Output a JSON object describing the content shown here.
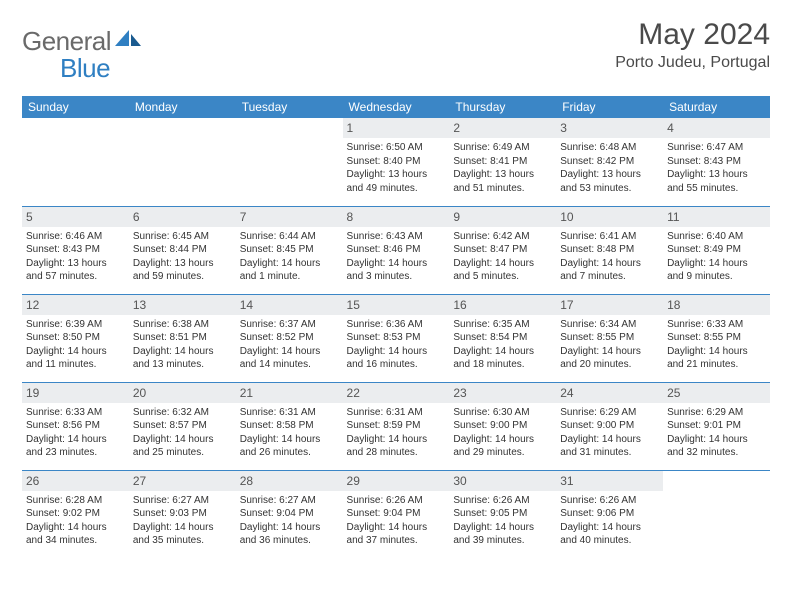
{
  "logo": {
    "text1": "General",
    "text2": "Blue"
  },
  "header": {
    "month": "May 2024",
    "location": "Porto Judeu, Portugal"
  },
  "colors": {
    "header_bg": "#3b86c6",
    "header_fg": "#ffffff",
    "daynum_bg": "#ebedef",
    "rule": "#3b86c6",
    "logo_gray": "#6a6a6a",
    "logo_blue": "#2f7fc2"
  },
  "typography": {
    "month_fontsize": 30,
    "location_fontsize": 16,
    "dayhdr_fontsize": 12,
    "cell_fontsize": 10
  },
  "weekdays": [
    "Sunday",
    "Monday",
    "Tuesday",
    "Wednesday",
    "Thursday",
    "Friday",
    "Saturday"
  ],
  "weeks": [
    [
      {
        "empty": true
      },
      {
        "empty": true
      },
      {
        "empty": true
      },
      {
        "n": "1",
        "sr": "Sunrise: 6:50 AM",
        "ss": "Sunset: 8:40 PM",
        "d1": "Daylight: 13 hours",
        "d2": "and 49 minutes."
      },
      {
        "n": "2",
        "sr": "Sunrise: 6:49 AM",
        "ss": "Sunset: 8:41 PM",
        "d1": "Daylight: 13 hours",
        "d2": "and 51 minutes."
      },
      {
        "n": "3",
        "sr": "Sunrise: 6:48 AM",
        "ss": "Sunset: 8:42 PM",
        "d1": "Daylight: 13 hours",
        "d2": "and 53 minutes."
      },
      {
        "n": "4",
        "sr": "Sunrise: 6:47 AM",
        "ss": "Sunset: 8:43 PM",
        "d1": "Daylight: 13 hours",
        "d2": "and 55 minutes."
      }
    ],
    [
      {
        "n": "5",
        "sr": "Sunrise: 6:46 AM",
        "ss": "Sunset: 8:43 PM",
        "d1": "Daylight: 13 hours",
        "d2": "and 57 minutes."
      },
      {
        "n": "6",
        "sr": "Sunrise: 6:45 AM",
        "ss": "Sunset: 8:44 PM",
        "d1": "Daylight: 13 hours",
        "d2": "and 59 minutes."
      },
      {
        "n": "7",
        "sr": "Sunrise: 6:44 AM",
        "ss": "Sunset: 8:45 PM",
        "d1": "Daylight: 14 hours",
        "d2": "and 1 minute."
      },
      {
        "n": "8",
        "sr": "Sunrise: 6:43 AM",
        "ss": "Sunset: 8:46 PM",
        "d1": "Daylight: 14 hours",
        "d2": "and 3 minutes."
      },
      {
        "n": "9",
        "sr": "Sunrise: 6:42 AM",
        "ss": "Sunset: 8:47 PM",
        "d1": "Daylight: 14 hours",
        "d2": "and 5 minutes."
      },
      {
        "n": "10",
        "sr": "Sunrise: 6:41 AM",
        "ss": "Sunset: 8:48 PM",
        "d1": "Daylight: 14 hours",
        "d2": "and 7 minutes."
      },
      {
        "n": "11",
        "sr": "Sunrise: 6:40 AM",
        "ss": "Sunset: 8:49 PM",
        "d1": "Daylight: 14 hours",
        "d2": "and 9 minutes."
      }
    ],
    [
      {
        "n": "12",
        "sr": "Sunrise: 6:39 AM",
        "ss": "Sunset: 8:50 PM",
        "d1": "Daylight: 14 hours",
        "d2": "and 11 minutes."
      },
      {
        "n": "13",
        "sr": "Sunrise: 6:38 AM",
        "ss": "Sunset: 8:51 PM",
        "d1": "Daylight: 14 hours",
        "d2": "and 13 minutes."
      },
      {
        "n": "14",
        "sr": "Sunrise: 6:37 AM",
        "ss": "Sunset: 8:52 PM",
        "d1": "Daylight: 14 hours",
        "d2": "and 14 minutes."
      },
      {
        "n": "15",
        "sr": "Sunrise: 6:36 AM",
        "ss": "Sunset: 8:53 PM",
        "d1": "Daylight: 14 hours",
        "d2": "and 16 minutes."
      },
      {
        "n": "16",
        "sr": "Sunrise: 6:35 AM",
        "ss": "Sunset: 8:54 PM",
        "d1": "Daylight: 14 hours",
        "d2": "and 18 minutes."
      },
      {
        "n": "17",
        "sr": "Sunrise: 6:34 AM",
        "ss": "Sunset: 8:55 PM",
        "d1": "Daylight: 14 hours",
        "d2": "and 20 minutes."
      },
      {
        "n": "18",
        "sr": "Sunrise: 6:33 AM",
        "ss": "Sunset: 8:55 PM",
        "d1": "Daylight: 14 hours",
        "d2": "and 21 minutes."
      }
    ],
    [
      {
        "n": "19",
        "sr": "Sunrise: 6:33 AM",
        "ss": "Sunset: 8:56 PM",
        "d1": "Daylight: 14 hours",
        "d2": "and 23 minutes."
      },
      {
        "n": "20",
        "sr": "Sunrise: 6:32 AM",
        "ss": "Sunset: 8:57 PM",
        "d1": "Daylight: 14 hours",
        "d2": "and 25 minutes."
      },
      {
        "n": "21",
        "sr": "Sunrise: 6:31 AM",
        "ss": "Sunset: 8:58 PM",
        "d1": "Daylight: 14 hours",
        "d2": "and 26 minutes."
      },
      {
        "n": "22",
        "sr": "Sunrise: 6:31 AM",
        "ss": "Sunset: 8:59 PM",
        "d1": "Daylight: 14 hours",
        "d2": "and 28 minutes."
      },
      {
        "n": "23",
        "sr": "Sunrise: 6:30 AM",
        "ss": "Sunset: 9:00 PM",
        "d1": "Daylight: 14 hours",
        "d2": "and 29 minutes."
      },
      {
        "n": "24",
        "sr": "Sunrise: 6:29 AM",
        "ss": "Sunset: 9:00 PM",
        "d1": "Daylight: 14 hours",
        "d2": "and 31 minutes."
      },
      {
        "n": "25",
        "sr": "Sunrise: 6:29 AM",
        "ss": "Sunset: 9:01 PM",
        "d1": "Daylight: 14 hours",
        "d2": "and 32 minutes."
      }
    ],
    [
      {
        "n": "26",
        "sr": "Sunrise: 6:28 AM",
        "ss": "Sunset: 9:02 PM",
        "d1": "Daylight: 14 hours",
        "d2": "and 34 minutes."
      },
      {
        "n": "27",
        "sr": "Sunrise: 6:27 AM",
        "ss": "Sunset: 9:03 PM",
        "d1": "Daylight: 14 hours",
        "d2": "and 35 minutes."
      },
      {
        "n": "28",
        "sr": "Sunrise: 6:27 AM",
        "ss": "Sunset: 9:04 PM",
        "d1": "Daylight: 14 hours",
        "d2": "and 36 minutes."
      },
      {
        "n": "29",
        "sr": "Sunrise: 6:26 AM",
        "ss": "Sunset: 9:04 PM",
        "d1": "Daylight: 14 hours",
        "d2": "and 37 minutes."
      },
      {
        "n": "30",
        "sr": "Sunrise: 6:26 AM",
        "ss": "Sunset: 9:05 PM",
        "d1": "Daylight: 14 hours",
        "d2": "and 39 minutes."
      },
      {
        "n": "31",
        "sr": "Sunrise: 6:26 AM",
        "ss": "Sunset: 9:06 PM",
        "d1": "Daylight: 14 hours",
        "d2": "and 40 minutes."
      },
      {
        "empty": true
      }
    ]
  ]
}
